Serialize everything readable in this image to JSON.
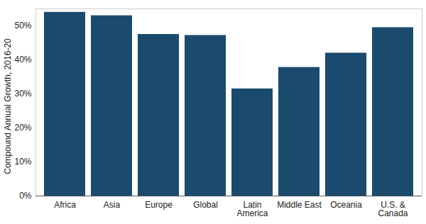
{
  "chart_data": {
    "type": "bar",
    "categories": [
      "Africa",
      "Asia",
      "Europe",
      "Global",
      "Latin\nAmerica",
      "Middle East",
      "Oceania",
      "U.S. &\nCanada"
    ],
    "values": [
      54,
      53,
      47.5,
      47.2,
      31.5,
      37.8,
      42,
      49.5
    ],
    "color": "#1a4a6e",
    "y_label": "Compound Annual Growth, 2016-20",
    "ylim": [
      0,
      55
    ],
    "yticks": [
      {
        "value": 0,
        "label": "0%"
      },
      {
        "value": 10,
        "label": "10%"
      },
      {
        "value": 20,
        "label": "20%"
      },
      {
        "value": 30,
        "label": "30%"
      },
      {
        "value": 40,
        "label": "40%"
      },
      {
        "value": 50,
        "label": "50%"
      }
    ],
    "grid": false
  }
}
